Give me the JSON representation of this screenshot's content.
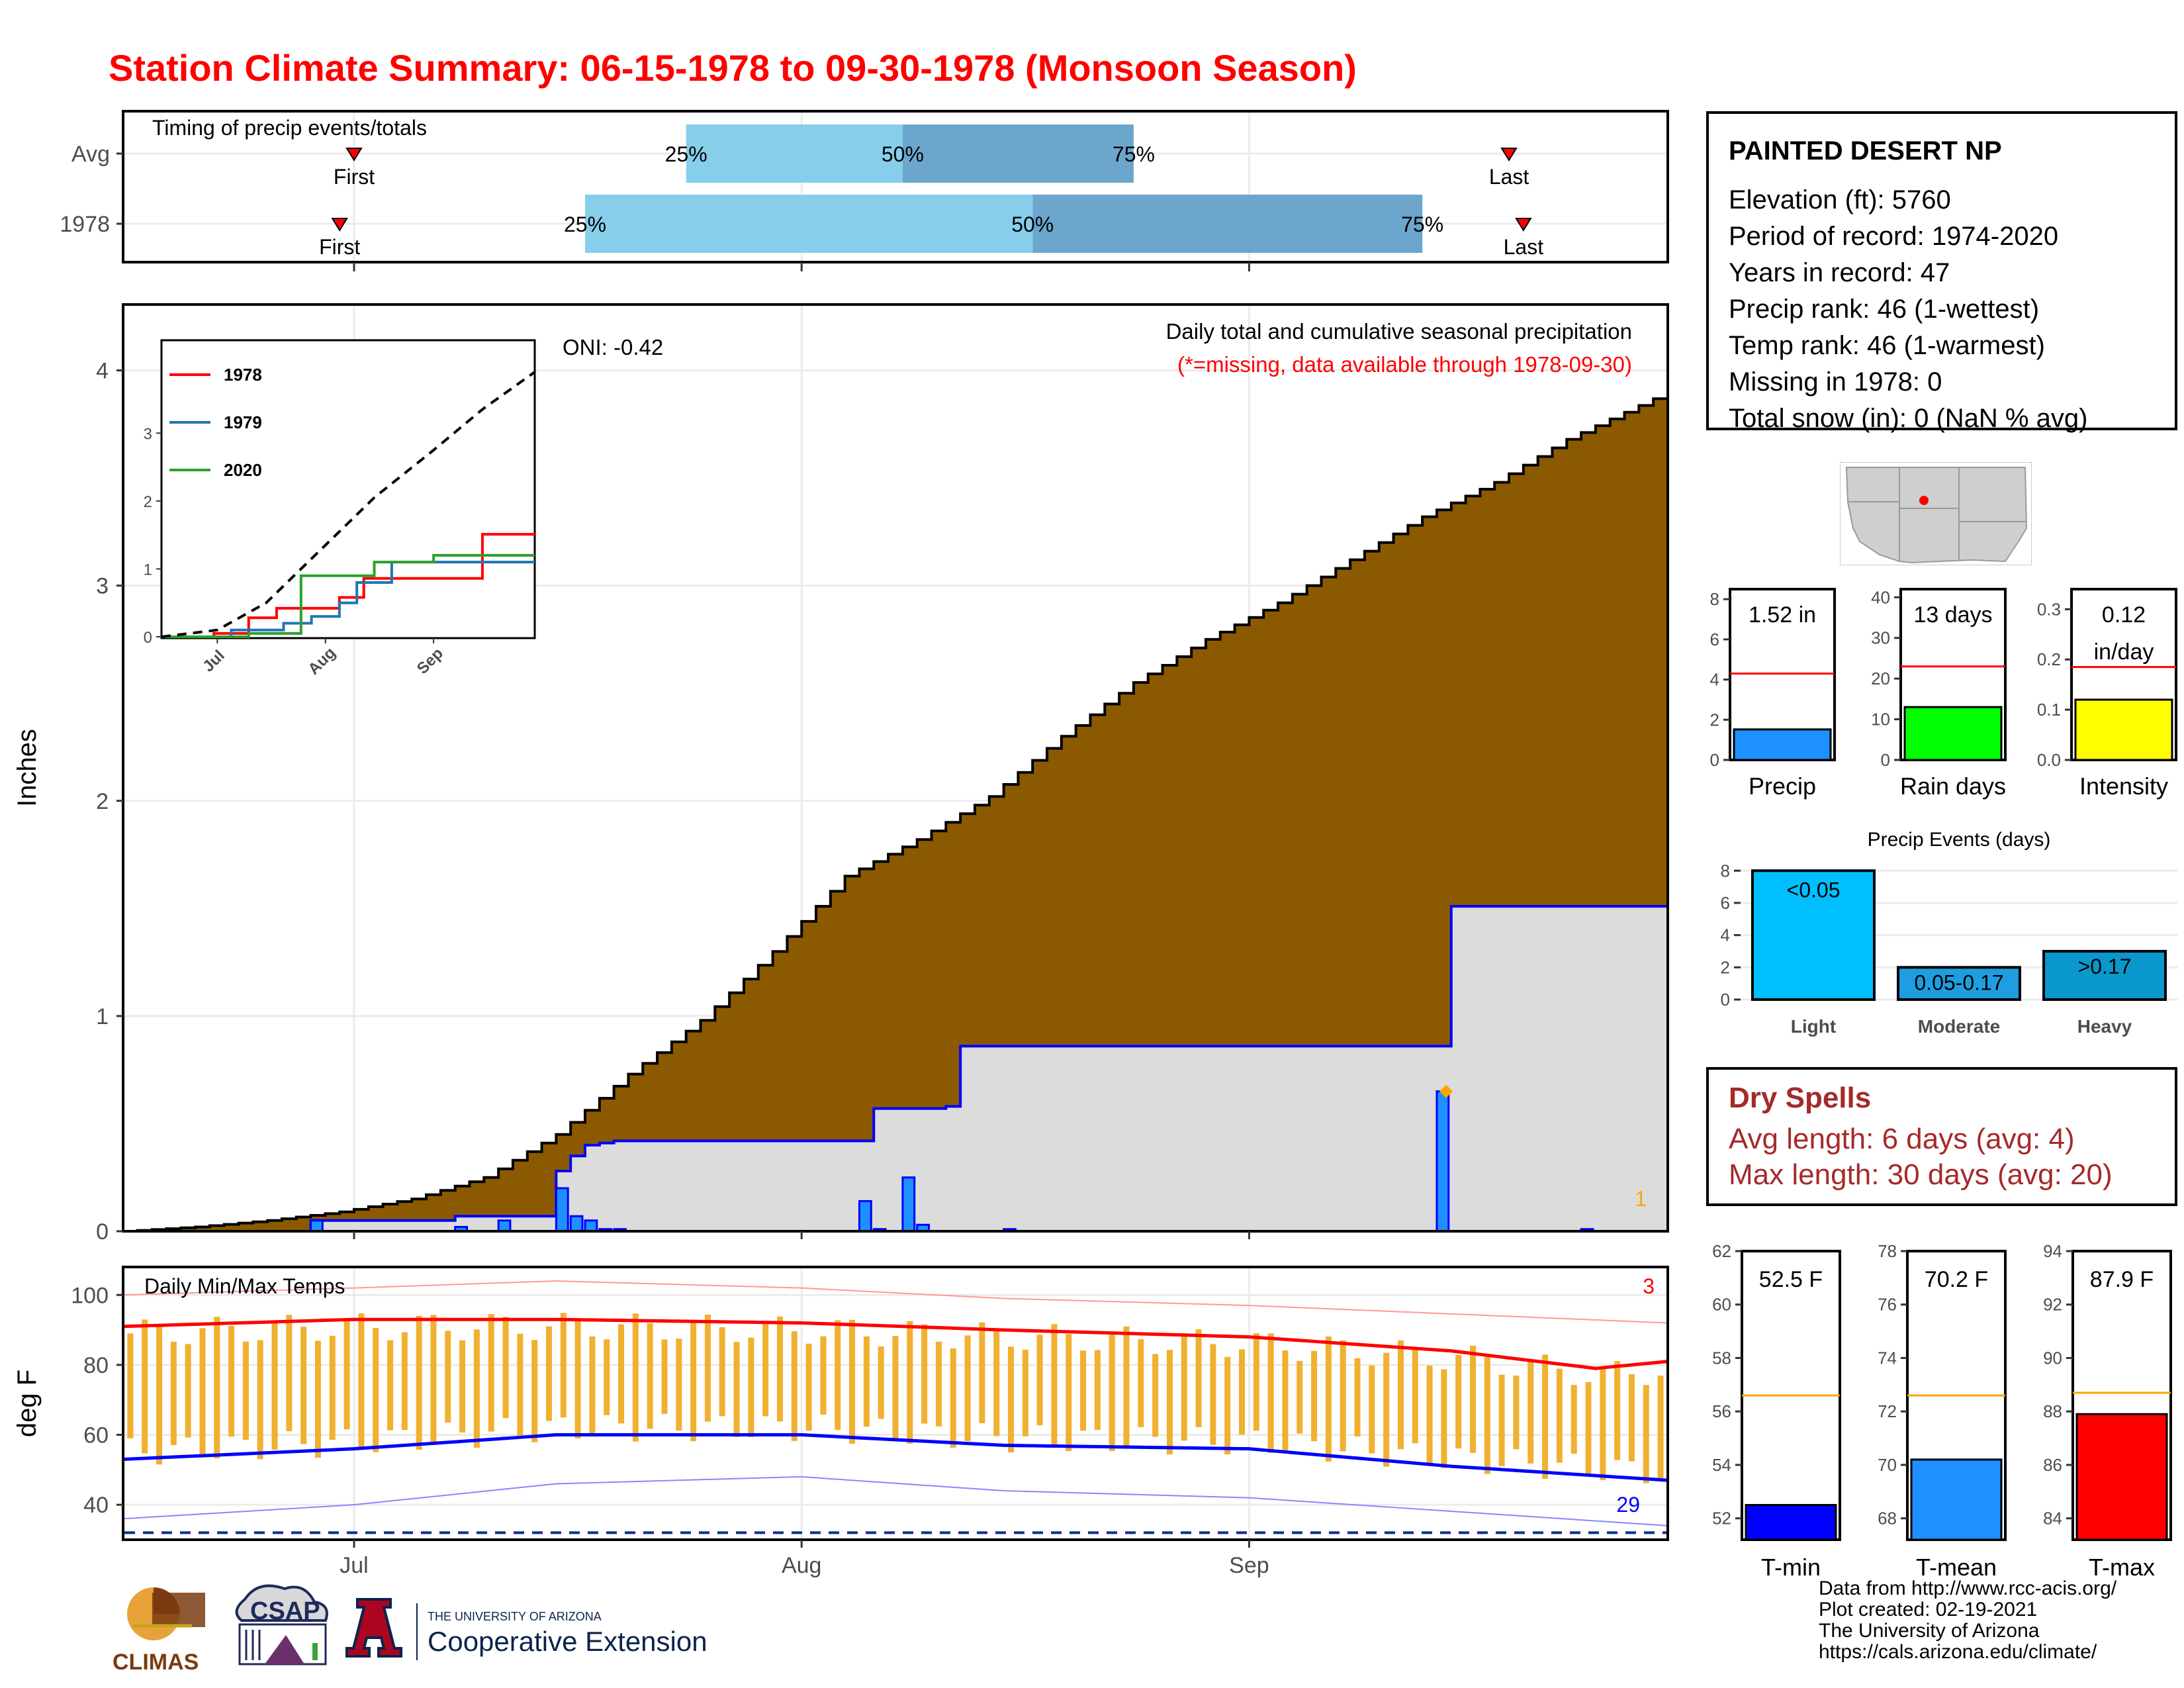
{
  "title": "Station Climate Summary: 06-15-1978 to 09-30-1978 (Monsoon Season)",
  "colors": {
    "title": "#ff0000",
    "cumulative_avg_fill": "#8b5a00",
    "cumulative_year_fill": "#dcdcdc",
    "cumulative_year_line": "#0000ff",
    "daily_bar": "#1e90ff",
    "quartile_light": "#87ceeb",
    "quartile_dark": "#6ca6cd",
    "temp_range": "#f0b030",
    "tmax": "#ff0000",
    "tmin": "#0000ff",
    "avg_line": "#ffa500",
    "dry_spell_text": "#a52a2a"
  },
  "timing": {
    "title": "Timing of precip events/totals",
    "rows": [
      {
        "label": "Avg",
        "first_date": "1978-07-01",
        "first_label": "First",
        "q25": "1978-07-24",
        "q25_label": "25%",
        "q50": "1978-08-08",
        "q50_label": "50%",
        "q75": "1978-08-24",
        "q75_label": "75%",
        "last_date": "1978-09-19",
        "last_label": "Last"
      },
      {
        "label": "1978",
        "first_date": "1978-06-30",
        "first_label": "First",
        "q25": "1978-07-17",
        "q25_label": "25%",
        "q50": "1978-08-17",
        "q50_label": "50%",
        "q75": "1978-09-13",
        "q75_label": "75%",
        "last_date": "1978-09-20",
        "last_label": "Last"
      }
    ]
  },
  "station": {
    "name": "PAINTED DESERT NP",
    "lines": [
      "Elevation (ft): 5760",
      "Period of record: 1974-2020",
      "Years in record: 47",
      "Precip rank: 46 (1-wettest)",
      "Temp rank: 46 (1-warmest)",
      "Missing in 1978: 0",
      "Total snow (in): 0 (NaN % avg)"
    ]
  },
  "main_plot": {
    "ylabel": "Inches",
    "annotation_title": "Daily total and cumulative seasonal precipitation",
    "annotation_missing": "(*=missing, data available through 1978-09-30)",
    "oni": "ONI: -0.42",
    "missing_count": "1",
    "y_ticks": [
      "0",
      "1",
      "2",
      "3",
      "4"
    ],
    "x_ticks": [
      "Jul",
      "Aug",
      "Sep"
    ]
  },
  "inset": {
    "legend": [
      "1978",
      "1979",
      "2020"
    ],
    "legend_colors": [
      "#ff0000",
      "#1f77b4",
      "#2ca02c"
    ],
    "y_ticks": [
      "0",
      "1",
      "2",
      "3"
    ],
    "x_ticks": [
      "Jul",
      "Aug",
      "Sep"
    ]
  },
  "temp_plot": {
    "ylabel": "deg F",
    "title": "Daily Min/Max Temps",
    "y_ticks": [
      "40",
      "60",
      "80",
      "100"
    ],
    "count_top": "3",
    "count_bottom": "29"
  },
  "small_bars": [
    {
      "label": "Precip",
      "value_label": "1.52 in",
      "value": 1.52,
      "avg": 4.3,
      "ymax": 8.5,
      "ticks": [
        "0",
        "2",
        "4",
        "6",
        "8"
      ],
      "tickvals": [
        0,
        2,
        4,
        6,
        8
      ],
      "color": "#1e90ff"
    },
    {
      "label": "Rain days",
      "value_label": "13 days",
      "value": 13,
      "avg": 23,
      "ymax": 42,
      "ticks": [
        "0",
        "10",
        "20",
        "30",
        "40"
      ],
      "tickvals": [
        0,
        10,
        20,
        30,
        40
      ],
      "color": "#00ff00"
    },
    {
      "label": "Intensity",
      "value_label": "0.12",
      "value_label2": "in/day",
      "value": 0.12,
      "avg": 0.185,
      "ymax": 0.34,
      "ticks": [
        "0.0",
        "0.1",
        "0.2",
        "0.3"
      ],
      "tickvals": [
        0,
        0.1,
        0.2,
        0.3
      ],
      "color": "#ffff00"
    }
  ],
  "precip_events": {
    "title": "Precip Events (days)",
    "categories": [
      "Light",
      "Moderate",
      "Heavy"
    ],
    "bar_labels": [
      "<0.05",
      "0.05-0.17",
      ">0.17"
    ],
    "values": [
      8,
      2,
      3
    ],
    "colors": [
      "#00bfff",
      "#1e9ee0",
      "#0a97cc"
    ],
    "ticks": [
      "0",
      "2",
      "4",
      "6",
      "8"
    ]
  },
  "dry_spells": {
    "title": "Dry Spells",
    "avg_length": "Avg length: 6 days (avg: 4)",
    "max_length": "Max length: 30 days (avg: 20)"
  },
  "temp_bars": [
    {
      "label": "T-min",
      "value_label": "52.5 F",
      "value": 52.5,
      "avg": 56.6,
      "ymin": 51.2,
      "ymax": 62.0,
      "ticks": [
        "52",
        "54",
        "56",
        "58",
        "60",
        "62"
      ],
      "tickvals": [
        52,
        54,
        56,
        58,
        60,
        62
      ],
      "color": "#0000ff"
    },
    {
      "label": "T-mean",
      "value_label": "70.2 F",
      "value": 70.2,
      "avg": 72.6,
      "ymin": 67.2,
      "ymax": 78.0,
      "ticks": [
        "68",
        "70",
        "72",
        "74",
        "76",
        "78"
      ],
      "tickvals": [
        68,
        70,
        72,
        74,
        76,
        78
      ],
      "color": "#1e90ff"
    },
    {
      "label": "T-max",
      "value_label": "87.9 F",
      "value": 87.9,
      "avg": 88.7,
      "ymin": 83.2,
      "ymax": 94.0,
      "ticks": [
        "84",
        "86",
        "88",
        "90",
        "92",
        "94"
      ],
      "tickvals": [
        84,
        86,
        88,
        90,
        92,
        94
      ],
      "color": "#ff0000"
    }
  ],
  "credits": [
    "Data from http://www.rcc-acis.org/",
    "Plot created: 02-19-2021",
    "The University of Arizona",
    "https://cals.arizona.edu/climate/"
  ],
  "logos": {
    "climas": "CLIMAS",
    "csap": "CSAP",
    "ua_small": "THE UNIVERSITY OF ARIZONA",
    "ua_big": "Cooperative Extension",
    "ua_letter": "A"
  },
  "chart_data": [
    {
      "type": "area",
      "title": "Daily total and cumulative seasonal precipitation",
      "ylabel": "Inches",
      "x_range": [
        "1978-06-15",
        "1978-09-30"
      ],
      "ylim": [
        0,
        4.3
      ],
      "series": [
        {
          "name": "cumulative average",
          "x": [
            "1978-06-15",
            "1978-06-20",
            "1978-06-25",
            "1978-06-30",
            "1978-07-05",
            "1978-07-10",
            "1978-07-15",
            "1978-07-20",
            "1978-07-25",
            "1978-07-30",
            "1978-08-04",
            "1978-08-09",
            "1978-08-14",
            "1978-08-19",
            "1978-08-24",
            "1978-08-29",
            "1978-09-03",
            "1978-09-08",
            "1978-09-13",
            "1978-09-18",
            "1978-09-23",
            "1978-09-30"
          ],
          "values": [
            0.0,
            0.02,
            0.05,
            0.09,
            0.15,
            0.25,
            0.45,
            0.73,
            0.98,
            1.3,
            1.65,
            1.82,
            2.02,
            2.3,
            2.55,
            2.75,
            2.92,
            3.12,
            3.32,
            3.48,
            3.68,
            3.9
          ]
        },
        {
          "name": "cumulative 1978",
          "x": [
            "1978-06-15",
            "1978-06-28",
            "1978-07-03",
            "1978-07-08",
            "1978-07-11",
            "1978-07-15",
            "1978-07-16",
            "1978-07-17",
            "1978-07-18",
            "1978-07-19",
            "1978-08-05",
            "1978-08-06",
            "1978-08-11",
            "1978-08-12",
            "1978-09-14",
            "1978-09-15",
            "1978-09-30"
          ],
          "values": [
            0.0,
            0.05,
            0.05,
            0.07,
            0.07,
            0.28,
            0.35,
            0.4,
            0.41,
            0.42,
            0.42,
            0.57,
            0.58,
            0.86,
            0.86,
            1.51,
            1.52
          ]
        },
        {
          "name": "daily 1978",
          "x": [
            "1978-06-28",
            "1978-07-08",
            "1978-07-11",
            "1978-07-15",
            "1978-07-16",
            "1978-07-17",
            "1978-07-18",
            "1978-07-19",
            "1978-08-05",
            "1978-08-06",
            "1978-08-08",
            "1978-08-09",
            "1978-08-15",
            "1978-09-14",
            "1978-09-24"
          ],
          "values": [
            0.05,
            0.02,
            0.05,
            0.2,
            0.07,
            0.05,
            0.01,
            0.01,
            0.14,
            0.01,
            0.25,
            0.03,
            0.01,
            0.65,
            0.01
          ]
        }
      ]
    },
    {
      "type": "line",
      "title": "",
      "series": [
        {
          "name": "1978",
          "x": [
            "1978-06-15",
            "1978-06-30",
            "1978-07-10",
            "1978-07-18",
            "1978-08-05",
            "1978-08-12",
            "1978-09-15",
            "1978-09-30"
          ],
          "values": [
            0,
            0.05,
            0.28,
            0.42,
            0.58,
            0.86,
            1.51,
            1.52
          ]
        },
        {
          "name": "1979",
          "x": [
            "1978-06-15",
            "1978-07-05",
            "1978-07-20",
            "1978-07-28",
            "1978-08-05",
            "1978-08-10",
            "1978-08-20",
            "1978-09-30"
          ],
          "values": [
            0,
            0.1,
            0.2,
            0.3,
            0.5,
            0.8,
            1.1,
            1.1
          ]
        },
        {
          "name": "2020",
          "x": [
            "1978-06-15",
            "1978-07-10",
            "1978-07-25",
            "1978-08-05",
            "1978-08-15",
            "1978-09-01",
            "1978-09-30"
          ],
          "values": [
            0,
            0.05,
            0.9,
            0.9,
            1.1,
            1.2,
            1.2
          ]
        },
        {
          "name": "average",
          "x": [
            "1978-06-15",
            "1978-07-01",
            "1978-07-15",
            "1978-08-01",
            "1978-08-15",
            "1978-09-01",
            "1978-09-15",
            "1978-09-30"
          ],
          "values": [
            0,
            0.1,
            0.5,
            1.35,
            2.05,
            2.75,
            3.35,
            3.9
          ]
        }
      ],
      "ylim": [
        0,
        3.9
      ]
    },
    {
      "type": "line",
      "title": "Daily Min/Max Temps",
      "ylabel": "deg F",
      "ylim": [
        30,
        108
      ],
      "series": [
        {
          "name": "avg max",
          "x": [
            "1978-06-15",
            "1978-07-01",
            "1978-07-15",
            "1978-08-01",
            "1978-08-15",
            "1978-09-01",
            "1978-09-15",
            "1978-09-25",
            "1978-09-30"
          ],
          "values": [
            91,
            93,
            93,
            92,
            90,
            88,
            84,
            79,
            81
          ]
        },
        {
          "name": "avg min",
          "x": [
            "1978-06-15",
            "1978-07-01",
            "1978-07-15",
            "1978-08-01",
            "1978-08-15",
            "1978-09-01",
            "1978-09-15",
            "1978-09-30"
          ],
          "values": [
            53,
            56,
            60,
            60,
            57,
            56,
            51,
            47
          ]
        },
        {
          "name": "record max",
          "x": [
            "1978-06-15",
            "1978-07-01",
            "1978-07-15",
            "1978-08-01",
            "1978-08-15",
            "1978-09-01",
            "1978-09-30"
          ],
          "values": [
            100,
            102,
            104,
            102,
            99,
            97,
            92
          ]
        },
        {
          "name": "record min",
          "x": [
            "1978-06-15",
            "1978-07-01",
            "1978-07-15",
            "1978-08-01",
            "1978-08-15",
            "1978-09-01",
            "1978-09-30"
          ],
          "values": [
            36,
            40,
            46,
            48,
            44,
            42,
            34
          ]
        },
        {
          "name": "freezing",
          "x": [
            "1978-06-15",
            "1978-09-30"
          ],
          "values": [
            32,
            32
          ]
        }
      ]
    },
    {
      "type": "bar",
      "categories": [
        "Precip"
      ],
      "values": [
        1.52
      ],
      "ylim": [
        0,
        8.5
      ]
    },
    {
      "type": "bar",
      "categories": [
        "Rain days"
      ],
      "values": [
        13
      ],
      "ylim": [
        0,
        42
      ]
    },
    {
      "type": "bar",
      "categories": [
        "Intensity"
      ],
      "values": [
        0.12
      ],
      "ylim": [
        0,
        0.34
      ]
    },
    {
      "type": "bar",
      "title": "Precip Events (days)",
      "categories": [
        "Light",
        "Moderate",
        "Heavy"
      ],
      "values": [
        8,
        2,
        3
      ],
      "ylim": [
        0,
        8.3
      ]
    },
    {
      "type": "bar",
      "categories": [
        "T-min"
      ],
      "values": [
        52.5
      ],
      "ylim": [
        51.2,
        62
      ]
    },
    {
      "type": "bar",
      "categories": [
        "T-mean"
      ],
      "values": [
        70.2
      ],
      "ylim": [
        67.2,
        78
      ]
    },
    {
      "type": "bar",
      "categories": [
        "T-max"
      ],
      "values": [
        87.9
      ],
      "ylim": [
        83.2,
        94
      ]
    }
  ]
}
